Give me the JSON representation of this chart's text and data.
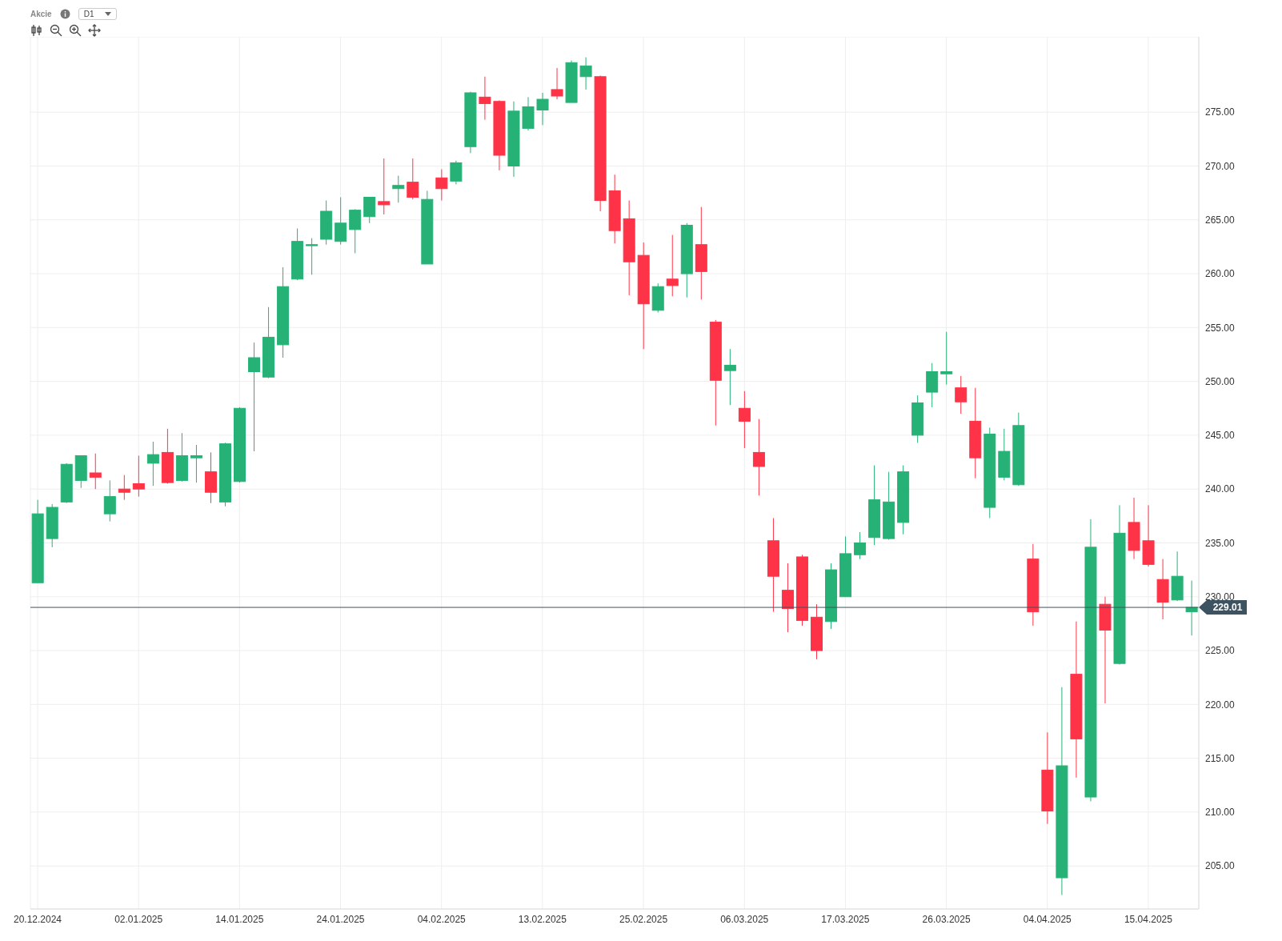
{
  "chart_data": {
    "type": "candlestick",
    "title": "Akcie",
    "subtitle": "D1",
    "categories": [
      "20.12.2024",
      null,
      null,
      null,
      null,
      null,
      null,
      "02.01.2025",
      null,
      null,
      null,
      null,
      null,
      null,
      "14.01.2025",
      null,
      null,
      null,
      null,
      null,
      null,
      "24.01.2025",
      null,
      null,
      null,
      null,
      null,
      null,
      "04.02.2025",
      null,
      null,
      null,
      null,
      null,
      null,
      "13.02.2025",
      null,
      null,
      null,
      null,
      null,
      null,
      "25.02.2025",
      null,
      null,
      null,
      null,
      null,
      null,
      "06.03.2025",
      null,
      null,
      null,
      null,
      null,
      null,
      "17.03.2025",
      null,
      null,
      null,
      null,
      null,
      null,
      "26.03.2025",
      null,
      null,
      null,
      null,
      null,
      null,
      "04.04.2025",
      null,
      null,
      null,
      null,
      null,
      null,
      "15.04.2025",
      null,
      null,
      null
    ],
    "ohlc": [
      [
        231.3,
        239.0,
        231.3,
        237.7
      ],
      [
        235.4,
        238.6,
        234.6,
        238.3
      ],
      [
        238.8,
        242.4,
        238.7,
        242.3
      ],
      [
        240.8,
        243.1,
        240.1,
        243.1
      ],
      [
        241.5,
        243.3,
        240.0,
        241.1
      ],
      [
        237.7,
        240.8,
        237.0,
        239.3
      ],
      [
        240.0,
        241.3,
        239.0,
        239.7
      ],
      [
        240.5,
        243.1,
        239.3,
        240.0
      ],
      [
        242.4,
        244.4,
        240.3,
        243.2
      ],
      [
        243.4,
        245.6,
        240.5,
        240.6
      ],
      [
        240.8,
        245.2,
        240.7,
        243.1
      ],
      [
        242.9,
        244.1,
        240.6,
        243.1
      ],
      [
        241.6,
        243.4,
        238.7,
        239.7
      ],
      [
        238.8,
        244.3,
        238.4,
        244.2
      ],
      [
        240.7,
        247.6,
        240.6,
        247.5
      ],
      [
        250.9,
        253.6,
        243.5,
        252.2
      ],
      [
        250.4,
        256.9,
        250.3,
        254.1
      ],
      [
        253.4,
        260.6,
        252.2,
        258.8
      ],
      [
        259.5,
        264.2,
        259.4,
        263.0
      ],
      [
        262.6,
        263.3,
        259.9,
        262.7
      ],
      [
        263.2,
        266.8,
        262.7,
        265.8
      ],
      [
        263.0,
        267.1,
        262.7,
        264.7
      ],
      [
        264.1,
        266.0,
        261.9,
        265.9
      ],
      [
        265.3,
        267.1,
        264.7,
        267.1
      ],
      [
        266.7,
        270.7,
        265.5,
        266.4
      ],
      [
        267.9,
        269.1,
        266.6,
        268.2
      ],
      [
        268.5,
        270.7,
        266.9,
        267.1
      ],
      [
        260.9,
        267.7,
        260.9,
        266.9
      ],
      [
        268.9,
        269.7,
        266.8,
        267.9
      ],
      [
        268.6,
        270.5,
        268.3,
        270.3
      ],
      [
        271.8,
        276.9,
        271.2,
        276.8
      ],
      [
        276.4,
        278.3,
        274.3,
        275.8
      ],
      [
        276.0,
        276.1,
        269.6,
        271.0
      ],
      [
        270.0,
        276.0,
        269.0,
        275.1
      ],
      [
        273.5,
        276.4,
        273.3,
        275.5
      ],
      [
        275.2,
        276.8,
        273.8,
        276.2
      ],
      [
        277.1,
        279.1,
        276.2,
        276.5
      ],
      [
        275.9,
        279.8,
        275.9,
        279.6
      ],
      [
        278.3,
        280.1,
        277.1,
        279.3
      ],
      [
        278.3,
        278.4,
        265.8,
        266.8
      ],
      [
        267.7,
        269.2,
        262.8,
        264.0
      ],
      [
        265.1,
        266.8,
        258.0,
        261.1
      ],
      [
        261.7,
        262.9,
        253.0,
        257.2
      ],
      [
        256.6,
        259.1,
        256.4,
        258.8
      ],
      [
        259.5,
        263.6,
        257.9,
        258.9
      ],
      [
        260.0,
        264.7,
        257.8,
        264.5
      ],
      [
        262.7,
        266.2,
        257.6,
        260.2
      ],
      [
        255.5,
        255.7,
        245.9,
        250.1
      ],
      [
        251.0,
        253.0,
        247.8,
        251.5
      ],
      [
        247.5,
        249.1,
        243.8,
        246.3
      ],
      [
        243.4,
        246.5,
        239.4,
        242.1
      ],
      [
        235.2,
        237.3,
        228.6,
        231.9
      ],
      [
        230.6,
        233.1,
        226.7,
        228.9
      ],
      [
        233.7,
        233.9,
        227.3,
        227.8
      ],
      [
        228.1,
        229.3,
        224.2,
        225.0
      ],
      [
        227.7,
        233.1,
        227.0,
        232.5
      ],
      [
        230.0,
        235.6,
        230.0,
        234.0
      ],
      [
        233.9,
        236.0,
        233.5,
        235.0
      ],
      [
        235.5,
        242.2,
        234.8,
        239.0
      ],
      [
        235.4,
        241.6,
        235.3,
        238.8
      ],
      [
        236.9,
        242.2,
        235.8,
        241.6
      ],
      [
        245.0,
        248.7,
        244.3,
        248.0
      ],
      [
        249.0,
        251.7,
        247.6,
        250.9
      ],
      [
        250.7,
        254.6,
        249.7,
        250.9
      ],
      [
        249.4,
        250.5,
        247.0,
        248.1
      ],
      [
        246.3,
        249.4,
        241.0,
        242.9
      ],
      [
        238.3,
        245.7,
        237.3,
        245.1
      ],
      [
        241.1,
        245.6,
        240.8,
        243.5
      ],
      [
        240.4,
        247.1,
        240.3,
        245.9
      ],
      [
        233.5,
        234.9,
        227.3,
        228.6
      ],
      [
        213.9,
        217.4,
        208.9,
        210.1
      ],
      [
        203.9,
        221.6,
        202.3,
        214.3
      ],
      [
        222.8,
        227.7,
        213.2,
        216.8
      ],
      [
        211.4,
        237.2,
        211.0,
        234.6
      ],
      [
        229.3,
        230.0,
        220.1,
        226.9
      ],
      [
        223.8,
        238.5,
        223.7,
        235.9
      ],
      [
        236.9,
        239.2,
        233.5,
        234.3
      ],
      [
        235.2,
        238.5,
        232.8,
        233.0
      ],
      [
        231.6,
        233.5,
        227.9,
        229.5
      ],
      [
        229.7,
        234.2,
        229.6,
        231.9
      ],
      [
        228.6,
        231.5,
        226.4,
        229.01
      ]
    ],
    "colors": [
      "#26b276",
      "#26b276",
      "#26b276",
      "#26b276",
      "#ff3347",
      "#26b276",
      "#ff3347",
      "#ff3347",
      "#26b276",
      "#ff3347",
      "#26b276",
      "#26b276",
      "#ff3347",
      "#26b276",
      "#26b276",
      "#26b276",
      "#26b276",
      "#26b276",
      "#26b276",
      "#26b276",
      "#26b276",
      "#26b276",
      "#26b276",
      "#26b276",
      "#ff3347",
      "#26b276",
      "#ff3347",
      "#26b276",
      "#ff3347",
      "#26b276",
      "#26b276",
      "#ff3347",
      "#ff3347",
      "#26b276",
      "#26b276",
      "#26b276",
      "#ff3347",
      "#26b276",
      "#26b276",
      "#ff3347",
      "#ff3347",
      "#ff3347",
      "#ff3347",
      "#26b276",
      "#ff3347",
      "#26b276",
      "#ff3347",
      "#ff3347",
      "#26b276",
      "#ff3347",
      "#ff3347",
      "#ff3347",
      "#ff3347",
      "#ff3347",
      "#ff3347",
      "#26b276",
      "#26b276",
      "#26b276",
      "#26b276",
      "#26b276",
      "#26b276",
      "#26b276",
      "#26b276",
      "#26b276",
      "#ff3347",
      "#ff3347",
      "#26b276",
      "#26b276",
      "#26b276",
      "#ff3347",
      "#ff3347",
      "#26b276",
      "#ff3347",
      "#26b276",
      "#ff3347",
      "#26b276",
      "#ff3347",
      "#ff3347",
      "#ff3347",
      "#26b276",
      "#26b276"
    ],
    "ylim": [
      201,
      282
    ],
    "yticks": [
      {
        "value": 205,
        "label": "205.00"
      },
      {
        "value": 210,
        "label": "210.00"
      },
      {
        "value": 215,
        "label": "215.00"
      },
      {
        "value": 220,
        "label": "220.00"
      },
      {
        "value": 225,
        "label": "225.00"
      },
      {
        "value": 230,
        "label": "230.00"
      },
      {
        "value": 235,
        "label": "235.00"
      },
      {
        "value": 240,
        "label": "240.00"
      },
      {
        "value": 245,
        "label": "245.00"
      },
      {
        "value": 250,
        "label": "250.00"
      },
      {
        "value": 255,
        "label": "255.00"
      },
      {
        "value": 260,
        "label": "260.00"
      },
      {
        "value": 265,
        "label": "265.00"
      },
      {
        "value": 270,
        "label": "270.00"
      },
      {
        "value": 275,
        "label": "275.00"
      }
    ],
    "ref_lines": [
      {
        "axis": "y",
        "value": 229.01,
        "label": "229.01",
        "color": "#3d5361"
      }
    ],
    "grid": true
  }
}
